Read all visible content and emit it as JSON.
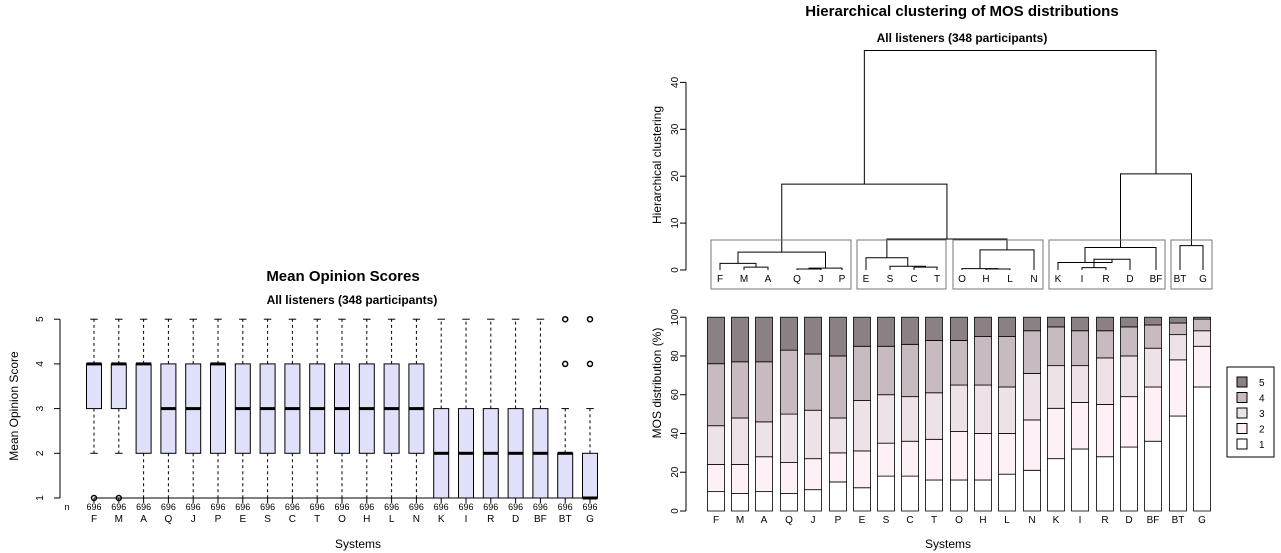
{
  "chart_data": [
    {
      "type": "box",
      "title": "Mean Opinion Scores",
      "subtitle": "All listeners (348 participants)",
      "xlabel": "Systems",
      "ylabel": "Mean Opinion Score",
      "ylim": [
        1,
        5
      ],
      "yticks": [
        1,
        2,
        3,
        4,
        5
      ],
      "n_label": "n",
      "box_color": "#e0e0fb",
      "categories": [
        "F",
        "M",
        "A",
        "Q",
        "J",
        "P",
        "E",
        "S",
        "C",
        "T",
        "O",
        "H",
        "L",
        "N",
        "K",
        "I",
        "R",
        "D",
        "BF",
        "BT",
        "G"
      ],
      "n": [
        "696",
        "696",
        "696",
        "696",
        "696",
        "696",
        "696",
        "696",
        "696",
        "696",
        "696",
        "696",
        "696",
        "696",
        "696",
        "696",
        "696",
        "696",
        "696",
        "696",
        "696"
      ],
      "boxes": [
        {
          "lo": 2,
          "q1": 3,
          "med": 4,
          "q3": 4,
          "hi": 5,
          "out": [
            1
          ]
        },
        {
          "lo": 2,
          "q1": 3,
          "med": 4,
          "q3": 4,
          "hi": 5,
          "out": [
            1
          ]
        },
        {
          "lo": 1,
          "q1": 2,
          "med": 4,
          "q3": 4,
          "hi": 5,
          "out": []
        },
        {
          "lo": 1,
          "q1": 2,
          "med": 3,
          "q3": 4,
          "hi": 5,
          "out": []
        },
        {
          "lo": 1,
          "q1": 2,
          "med": 3,
          "q3": 4,
          "hi": 5,
          "out": []
        },
        {
          "lo": 1,
          "q1": 2,
          "med": 4,
          "q3": 4,
          "hi": 5,
          "out": []
        },
        {
          "lo": 1,
          "q1": 2,
          "med": 3,
          "q3": 4,
          "hi": 5,
          "out": []
        },
        {
          "lo": 1,
          "q1": 2,
          "med": 3,
          "q3": 4,
          "hi": 5,
          "out": []
        },
        {
          "lo": 1,
          "q1": 2,
          "med": 3,
          "q3": 4,
          "hi": 5,
          "out": []
        },
        {
          "lo": 1,
          "q1": 2,
          "med": 3,
          "q3": 4,
          "hi": 5,
          "out": []
        },
        {
          "lo": 1,
          "q1": 2,
          "med": 3,
          "q3": 4,
          "hi": 5,
          "out": []
        },
        {
          "lo": 1,
          "q1": 2,
          "med": 3,
          "q3": 4,
          "hi": 5,
          "out": []
        },
        {
          "lo": 1,
          "q1": 2,
          "med": 3,
          "q3": 4,
          "hi": 5,
          "out": []
        },
        {
          "lo": 1,
          "q1": 2,
          "med": 3,
          "q3": 4,
          "hi": 5,
          "out": []
        },
        {
          "lo": 1,
          "q1": 1,
          "med": 2,
          "q3": 3,
          "hi": 5,
          "out": []
        },
        {
          "lo": 1,
          "q1": 1,
          "med": 2,
          "q3": 3,
          "hi": 5,
          "out": []
        },
        {
          "lo": 1,
          "q1": 1,
          "med": 2,
          "q3": 3,
          "hi": 5,
          "out": []
        },
        {
          "lo": 1,
          "q1": 1,
          "med": 2,
          "q3": 3,
          "hi": 5,
          "out": []
        },
        {
          "lo": 1,
          "q1": 1,
          "med": 2,
          "q3": 3,
          "hi": 5,
          "out": []
        },
        {
          "lo": 1,
          "q1": 1,
          "med": 2,
          "q3": 2,
          "hi": 3,
          "out": [
            4,
            5
          ]
        },
        {
          "lo": 1,
          "q1": 1,
          "med": 1,
          "q3": 2,
          "hi": 3,
          "out": [
            4,
            5
          ]
        }
      ]
    },
    {
      "type": "dendrogram",
      "title": "Hierarchical clustering of MOS distributions",
      "subtitle": "All listeners (348 participants)",
      "ylabel": "Hierarchical clustering",
      "ylim": [
        0,
        47
      ],
      "yticks": [
        0,
        10,
        20,
        30,
        40
      ],
      "leaves": [
        "F",
        "M",
        "A",
        "Q",
        "J",
        "P",
        "E",
        "S",
        "C",
        "T",
        "O",
        "H",
        "L",
        "N",
        "K",
        "I",
        "R",
        "D",
        "BF",
        "BT",
        "G"
      ],
      "merges": [
        {
          "a": "L1",
          "b": "L2",
          "h": 0.6
        },
        {
          "a": "L3",
          "b": "L4",
          "h": 0.2
        },
        {
          "a": "L8",
          "b": "L9",
          "h": 0.6
        },
        {
          "a": "L11",
          "b": "L12",
          "h": 0.2
        },
        {
          "a": "L15",
          "b": "L16",
          "h": 0.5
        },
        {
          "a": "L0",
          "b": "M0",
          "h": 1.4
        },
        {
          "a": "M1",
          "b": "L5",
          "h": 0.4
        },
        {
          "a": "M4",
          "b": "L17",
          "h": 2.3
        },
        {
          "a": "L7",
          "b": "M2",
          "h": 0.8
        },
        {
          "a": "L10",
          "b": "M3",
          "h": 0.3
        },
        {
          "a": "M7",
          "b": "L14",
          "h": 1.6
        },
        {
          "a": "M5",
          "b": "M6",
          "h": 3.8
        },
        {
          "a": "L6",
          "b": "M8",
          "h": 2.6
        },
        {
          "a": "M9",
          "b": "L13",
          "h": 4.3
        },
        {
          "a": "M10",
          "b": "L18",
          "h": 4.8
        },
        {
          "a": "L19",
          "b": "L20",
          "h": 5.2
        },
        {
          "a": "M12",
          "b": "M13",
          "h": 6.6
        },
        {
          "a": "M11",
          "b": "M16",
          "h": 18.3
        },
        {
          "a": "M14",
          "b": "M15",
          "h": 20.5
        },
        {
          "a": "M17",
          "b": "M18",
          "h": 46.8
        }
      ],
      "cluster_boxes": [
        [
          "F",
          "P"
        ],
        [
          "E",
          "T"
        ],
        [
          "O",
          "N"
        ],
        [
          "K",
          "BF"
        ],
        [
          "BT",
          "G"
        ]
      ]
    },
    {
      "type": "stacked-bar",
      "xlabel": "Systems",
      "ylabel": "MOS distribution (%)",
      "ylim": [
        0,
        100
      ],
      "yticks": [
        0,
        20,
        40,
        60,
        80,
        100
      ],
      "categories": [
        "F",
        "M",
        "A",
        "Q",
        "J",
        "P",
        "E",
        "S",
        "C",
        "T",
        "O",
        "H",
        "L",
        "N",
        "K",
        "I",
        "R",
        "D",
        "BF",
        "BT",
        "G"
      ],
      "series": [
        {
          "name": "1",
          "color": "#ffffff",
          "values": [
            10,
            9,
            10,
            9,
            11,
            15,
            12,
            18,
            18,
            16,
            16,
            16,
            19,
            21,
            27,
            32,
            28,
            33,
            36,
            49,
            64
          ]
        },
        {
          "name": "2",
          "color": "#fdf0f6",
          "values": [
            14,
            15,
            18,
            16,
            16,
            15,
            19,
            17,
            18,
            21,
            25,
            24,
            21,
            26,
            26,
            24,
            27,
            26,
            28,
            29,
            21
          ]
        },
        {
          "name": "3",
          "color": "#ede2e8",
          "values": [
            20,
            24,
            18,
            25,
            25,
            18,
            26,
            25,
            23,
            24,
            24,
            25,
            24,
            24,
            22,
            19,
            24,
            21,
            20,
            13,
            8
          ]
        },
        {
          "name": "4",
          "color": "#c7bbc1",
          "values": [
            32,
            29,
            31,
            33,
            29,
            32,
            28,
            25,
            27,
            27,
            23,
            25,
            26,
            22,
            20,
            18,
            14,
            15,
            12,
            6,
            6
          ]
        },
        {
          "name": "5",
          "color": "#8b8184",
          "values": [
            24,
            23,
            23,
            17,
            19,
            20,
            15,
            15,
            14,
            12,
            12,
            10,
            10,
            7,
            5,
            7,
            7,
            5,
            4,
            3,
            1
          ]
        }
      ],
      "legend_position": "right"
    }
  ]
}
